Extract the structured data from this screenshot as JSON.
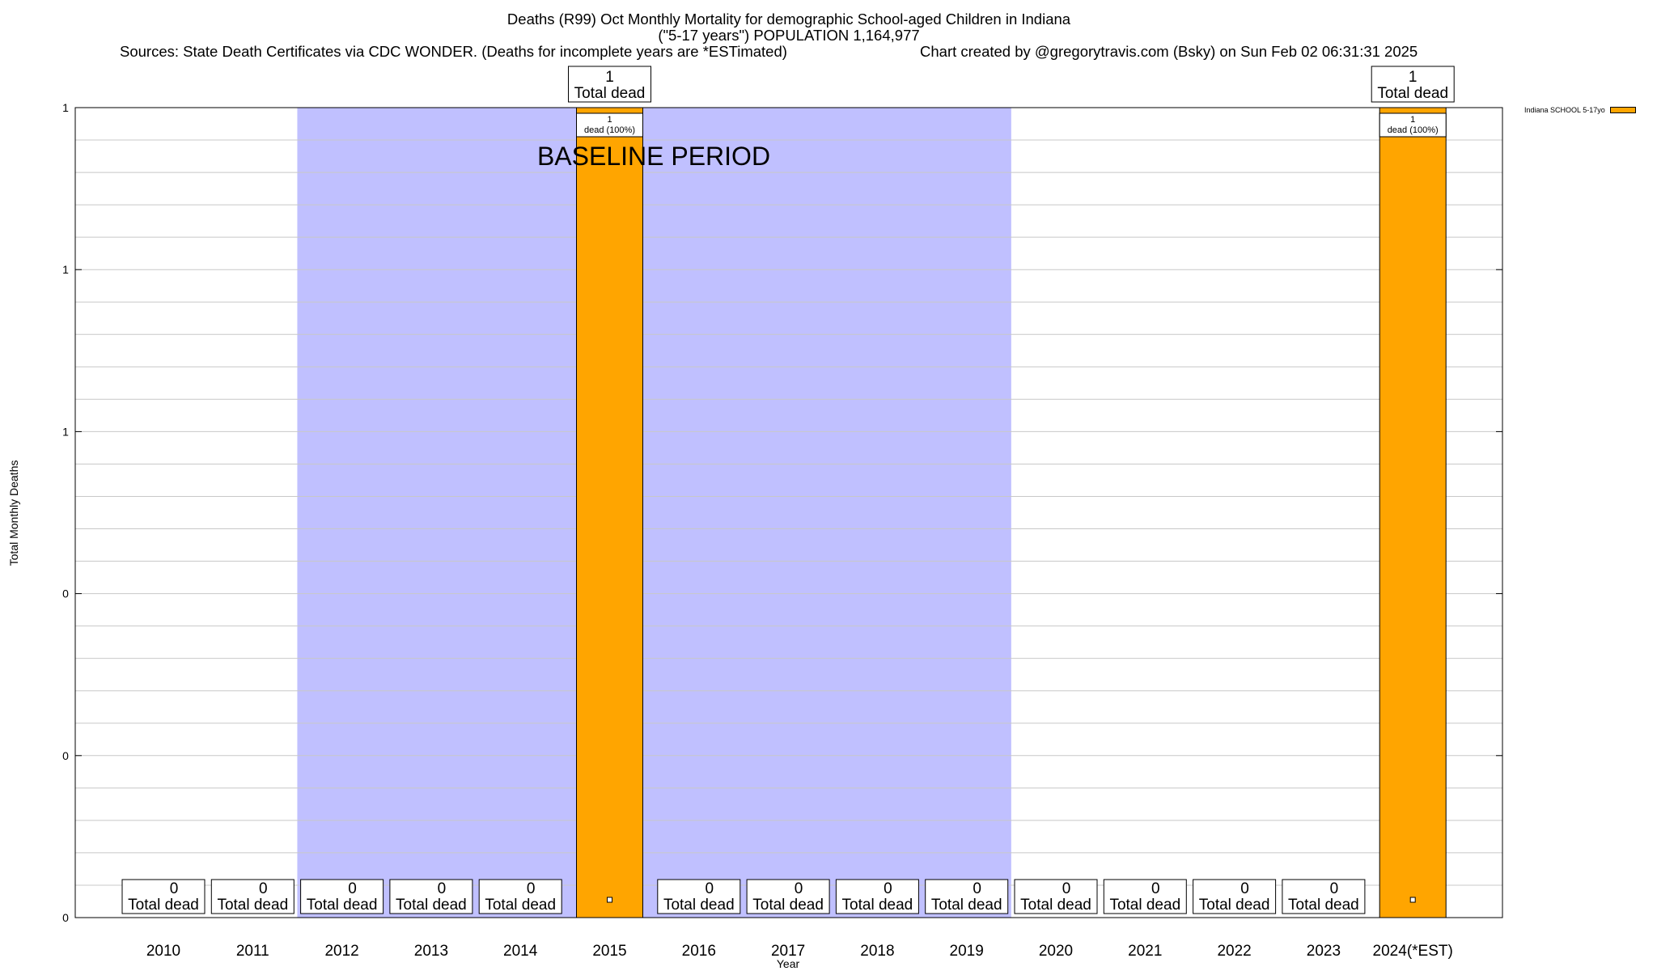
{
  "header": {
    "title": "Deaths (R99) Oct Monthly Mortality for demographic School-aged Children in Indiana",
    "subtitle": "(\"5-17 years\") POPULATION 1,164,977",
    "sources": "Sources: State Death Certificates via CDC WONDER. (Deaths for incomplete years are *ESTimated)",
    "credit": "Chart created by @gregorytravis.com (Bsky) on Sun Feb 02 06:31:31 2025"
  },
  "chart_data": {
    "type": "bar",
    "title": "Deaths (R99) Oct Monthly Mortality for demographic School-aged Children in Indiana",
    "xlabel": "Year",
    "ylabel": "Total Monthly Deaths",
    "categories": [
      "2010",
      "2011",
      "2012",
      "2013",
      "2014",
      "2015",
      "2016",
      "2017",
      "2018",
      "2019",
      "2020",
      "2021",
      "2022",
      "2023",
      "2024(*EST)"
    ],
    "series": [
      {
        "name": "Indiana SCHOOL 5-17yo",
        "values": [
          0,
          0,
          0,
          0,
          0,
          1,
          0,
          0,
          0,
          0,
          0,
          0,
          0,
          0,
          1
        ],
        "color": "#ffa500"
      }
    ],
    "ylim": [
      0,
      1
    ],
    "y_tick_labels": [
      "0",
      "0",
      "0",
      "1",
      "1",
      "1"
    ],
    "grid": true,
    "legend_position": "top-right outside plot",
    "total_label_suffix": "Total dead",
    "inner_label_text": "dead (100%)",
    "baseline": {
      "label": "BASELINE PERIOD",
      "from": "2012",
      "to": "2019",
      "color": "#c0c0ff"
    }
  }
}
